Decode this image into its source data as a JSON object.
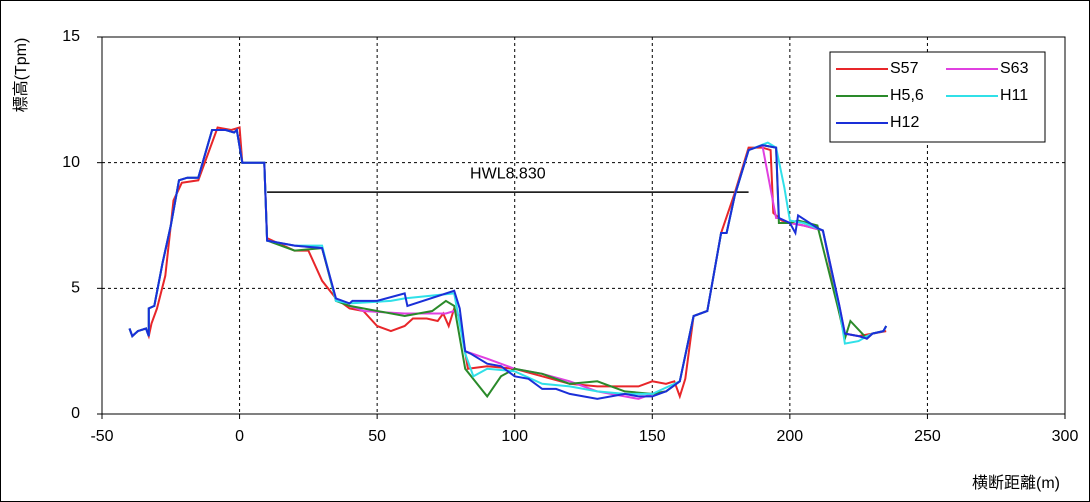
{
  "chart_data": {
    "type": "line",
    "xlabel": "横断距離(m)",
    "ylabel": "標高(Tpm)",
    "xlim": [
      -50,
      300
    ],
    "ylim": [
      0,
      15
    ],
    "xticks": [
      -50,
      0,
      50,
      100,
      150,
      200,
      250,
      300
    ],
    "yticks": [
      0,
      5,
      10,
      15
    ],
    "grid": true,
    "legend": "upper right",
    "annotations": [
      {
        "text": "HWL8.830",
        "y": 8.83,
        "x_start": 10,
        "x_end": 185
      }
    ],
    "series": [
      {
        "name": "S57",
        "color": "#e8262a",
        "x": [
          -40,
          -39,
          -37,
          -34,
          -33,
          -32,
          -30,
          -27,
          -24,
          -21,
          -15,
          -8,
          -3,
          0,
          1,
          9,
          10,
          20,
          25,
          30,
          35,
          40,
          45,
          50,
          55,
          60,
          63,
          68,
          72,
          74,
          76,
          78,
          80,
          83,
          90,
          100,
          110,
          120,
          130,
          140,
          145,
          150,
          155,
          158,
          160,
          162,
          165,
          170,
          175,
          180,
          185,
          190,
          193,
          194,
          197,
          200,
          205,
          212,
          218,
          220,
          225,
          230,
          235
        ],
        "values": [
          3.4,
          3.1,
          3.3,
          3.4,
          3.1,
          3.6,
          4.2,
          5.5,
          8.5,
          9.2,
          9.3,
          11.4,
          11.3,
          11.4,
          10,
          10,
          7,
          6.5,
          6.5,
          5.3,
          4.6,
          4.2,
          4.1,
          3.5,
          3.3,
          3.5,
          3.8,
          3.8,
          3.7,
          4.0,
          3.5,
          4.2,
          3.8,
          1.8,
          1.9,
          1.8,
          1.5,
          1.2,
          1.1,
          1.1,
          1.1,
          1.3,
          1.2,
          1.3,
          0.7,
          1.4,
          3.9,
          4.1,
          7.2,
          8.8,
          10.6,
          10.6,
          10.5,
          8.0,
          7.7,
          7.6,
          7.5,
          7.3,
          4.0,
          3.2,
          3.1,
          3.2,
          3.3
        ]
      },
      {
        "name": "S63",
        "color": "#e040e0",
        "x": [
          -40,
          -39,
          -37,
          -34,
          -33,
          -33,
          -31,
          -28,
          -25,
          -22,
          -19,
          -15,
          -10,
          -5,
          -2,
          -1,
          1,
          9,
          10,
          20,
          30,
          35,
          40,
          45,
          60,
          75,
          78,
          80,
          82,
          90,
          100,
          110,
          120,
          130,
          140,
          145,
          150,
          155,
          160,
          165,
          170,
          175,
          177,
          180,
          185,
          190,
          195,
          196,
          200,
          205,
          212,
          218,
          220,
          225,
          228,
          230,
          234,
          235
        ],
        "values": [
          3.4,
          3.1,
          3.3,
          3.4,
          3.1,
          4.2,
          4.3,
          6,
          7.5,
          9.3,
          9.4,
          9.4,
          11.3,
          11.3,
          11.2,
          11.3,
          10,
          10,
          6.9,
          6.7,
          6.6,
          4.6,
          4.3,
          4.1,
          4.0,
          4.0,
          4.1,
          3.9,
          2.5,
          2.2,
          1.8,
          1.6,
          1.3,
          0.9,
          0.7,
          0.6,
          0.8,
          0.9,
          1.3,
          3.9,
          4.1,
          7.2,
          7.2,
          8.7,
          10.5,
          10.7,
          7.8,
          7.8,
          7.6,
          7.5,
          7.3,
          4.3,
          3.2,
          3.1,
          3.0,
          3.2,
          3.3,
          3.5
        ]
      },
      {
        "name": "H5,6",
        "color": "#2a8a2a",
        "x": [
          -40,
          -39,
          -37,
          -34,
          -33,
          -33,
          -31,
          -28,
          -25,
          -22,
          -19,
          -15,
          -10,
          -5,
          -2,
          -1,
          1,
          9,
          10,
          20,
          30,
          35,
          40,
          60,
          70,
          75,
          78,
          82,
          90,
          95,
          100,
          110,
          120,
          130,
          140,
          150,
          155,
          160,
          165,
          170,
          175,
          177,
          180,
          185,
          190,
          195,
          196,
          200,
          203,
          210,
          218,
          220,
          222,
          228,
          230,
          234,
          235
        ],
        "values": [
          3.4,
          3.1,
          3.3,
          3.4,
          3.1,
          4.2,
          4.3,
          6,
          7.5,
          9.3,
          9.4,
          9.4,
          11.3,
          11.3,
          11.2,
          11.3,
          10,
          10,
          6.9,
          6.5,
          6.6,
          4.5,
          4.3,
          3.9,
          4.1,
          4.5,
          4.3,
          1.8,
          0.7,
          1.5,
          1.8,
          1.6,
          1.2,
          1.3,
          0.9,
          0.8,
          0.9,
          1.3,
          3.9,
          4.1,
          7.2,
          7.2,
          8.7,
          10.5,
          10.7,
          10.6,
          7.6,
          7.6,
          7.7,
          7.5,
          4.0,
          3.0,
          3.7,
          3.0,
          3.2,
          3.3,
          3.5
        ]
      },
      {
        "name": "H11",
        "color": "#30e0e8",
        "x": [
          -40,
          -39,
          -37,
          -34,
          -33,
          -33,
          -31,
          -28,
          -25,
          -22,
          -19,
          -15,
          -10,
          -5,
          -2,
          -1,
          1,
          9,
          10,
          20,
          30,
          35,
          40,
          55,
          60,
          78,
          82,
          85,
          90,
          100,
          110,
          120,
          130,
          140,
          150,
          160,
          165,
          170,
          175,
          177,
          180,
          185,
          192,
          195,
          198,
          200,
          205,
          212,
          218,
          220,
          225,
          228,
          230,
          234,
          235
        ],
        "values": [
          3.4,
          3.1,
          3.3,
          3.4,
          3.1,
          4.2,
          4.3,
          6,
          7.5,
          9.3,
          9.4,
          9.4,
          11.3,
          11.3,
          11.2,
          11.3,
          10,
          10,
          6.9,
          6.7,
          6.7,
          4.5,
          4.4,
          4.5,
          4.6,
          4.8,
          2.4,
          1.5,
          1.8,
          1.7,
          1.2,
          1.1,
          0.9,
          0.8,
          0.8,
          1.3,
          3.9,
          4.1,
          7.2,
          7.2,
          8.7,
          10.5,
          10.8,
          10.6,
          9.0,
          7.7,
          7.6,
          7.3,
          4.2,
          2.8,
          2.9,
          3.1,
          3.2,
          3.3,
          3.5
        ]
      },
      {
        "name": "H12",
        "color": "#1a2fd8",
        "x": [
          -40,
          -39,
          -37,
          -34,
          -33,
          -33,
          -31,
          -28,
          -25,
          -22,
          -19,
          -15,
          -10,
          -5,
          -2,
          -1,
          1,
          9,
          10,
          20,
          30,
          35,
          40,
          41,
          50,
          60,
          61,
          78,
          80,
          82,
          84,
          90,
          95,
          100,
          105,
          110,
          115,
          120,
          125,
          130,
          140,
          145,
          150,
          155,
          160,
          165,
          170,
          175,
          177,
          180,
          185,
          190,
          195,
          196,
          200,
          202,
          203,
          210,
          212,
          218,
          220,
          225,
          228,
          230,
          234,
          235
        ],
        "values": [
          3.4,
          3.1,
          3.3,
          3.4,
          3.1,
          4.2,
          4.3,
          6,
          7.5,
          9.3,
          9.4,
          9.4,
          11.3,
          11.3,
          11.2,
          11.3,
          10,
          10,
          6.9,
          6.7,
          6.6,
          4.6,
          4.4,
          4.5,
          4.5,
          4.8,
          4.3,
          4.9,
          4.2,
          2.5,
          2.4,
          2.0,
          1.9,
          1.5,
          1.4,
          1.0,
          1.0,
          0.8,
          0.7,
          0.6,
          0.8,
          0.7,
          0.7,
          0.9,
          1.3,
          3.9,
          4.1,
          7.2,
          7.2,
          8.7,
          10.5,
          10.7,
          10.6,
          7.8,
          7.6,
          7.2,
          7.9,
          7.4,
          7.3,
          4.3,
          3.2,
          3.1,
          3.0,
          3.2,
          3.3,
          3.5
        ]
      }
    ]
  }
}
